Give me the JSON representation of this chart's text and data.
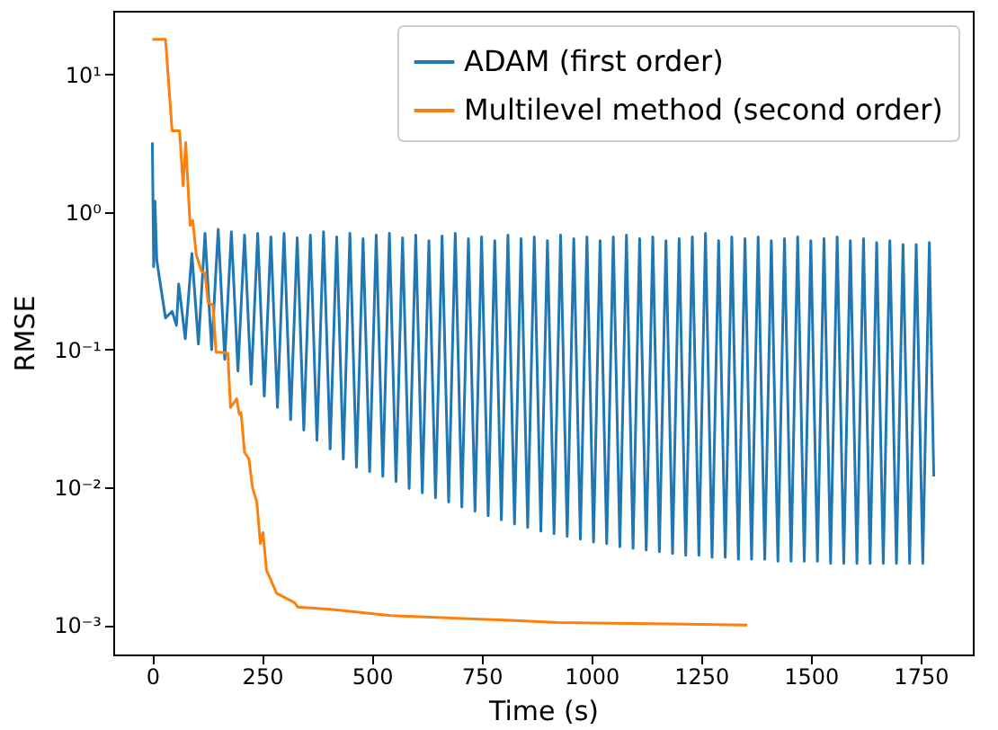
{
  "chart_data": {
    "type": "line",
    "xlabel": "Time (s)",
    "ylabel": "RMSE",
    "log": "y",
    "legend": "top right",
    "xlim": [
      -89,
      1869
    ],
    "xticks": [
      0,
      250,
      500,
      750,
      1000,
      1250,
      1500,
      1750
    ],
    "ylim": [
      0.00061,
      29
    ],
    "yticks": [
      {
        "value": 0.001,
        "label": "10⁻³"
      },
      {
        "value": 0.01,
        "label": "10⁻²"
      },
      {
        "value": 0.1,
        "label": "10⁻¹"
      },
      {
        "value": 1,
        "label": "10⁰"
      },
      {
        "value": 10,
        "label": "10¹"
      }
    ],
    "series": [
      {
        "name": "ADAM (first order)",
        "color": "#1f77b4",
        "x": [
          0,
          3,
          6,
          10,
          15,
          30,
          45,
          55,
          60,
          75,
          90,
          105,
          120,
          135,
          150,
          165,
          180,
          195,
          210,
          225,
          240,
          255,
          270,
          285,
          300,
          315,
          330,
          345,
          360,
          375,
          390,
          405,
          420,
          435,
          450,
          465,
          480,
          495,
          510,
          525,
          540,
          555,
          570,
          585,
          600,
          615,
          630,
          645,
          660,
          675,
          690,
          705,
          720,
          735,
          750,
          765,
          780,
          795,
          810,
          825,
          840,
          855,
          870,
          885,
          900,
          915,
          930,
          945,
          960,
          975,
          990,
          1005,
          1020,
          1035,
          1050,
          1065,
          1080,
          1095,
          1110,
          1125,
          1140,
          1155,
          1170,
          1185,
          1200,
          1215,
          1230,
          1245,
          1260,
          1275,
          1290,
          1305,
          1320,
          1335,
          1350,
          1365,
          1380,
          1395,
          1410,
          1425,
          1440,
          1455,
          1470,
          1485,
          1500,
          1515,
          1530,
          1545,
          1560,
          1575,
          1590,
          1605,
          1620,
          1635,
          1650,
          1665,
          1680,
          1695,
          1710,
          1725,
          1740,
          1755,
          1770,
          1780
        ],
        "values": [
          3.2,
          0.4,
          1.2,
          0.45,
          0.35,
          0.17,
          0.19,
          0.15,
          0.3,
          0.12,
          0.5,
          0.11,
          0.7,
          0.1,
          0.75,
          0.085,
          0.72,
          0.07,
          0.68,
          0.056,
          0.7,
          0.046,
          0.66,
          0.038,
          0.7,
          0.031,
          0.65,
          0.026,
          0.68,
          0.022,
          0.72,
          0.019,
          0.66,
          0.016,
          0.7,
          0.014,
          0.64,
          0.013,
          0.68,
          0.012,
          0.7,
          0.011,
          0.65,
          0.0098,
          0.68,
          0.0091,
          0.62,
          0.0084,
          0.67,
          0.0078,
          0.7,
          0.0072,
          0.64,
          0.0067,
          0.66,
          0.0062,
          0.62,
          0.0058,
          0.68,
          0.0054,
          0.64,
          0.0051,
          0.66,
          0.0048,
          0.62,
          0.0046,
          0.68,
          0.0044,
          0.64,
          0.0042,
          0.66,
          0.004,
          0.62,
          0.0039,
          0.66,
          0.0037,
          0.68,
          0.0036,
          0.64,
          0.0035,
          0.66,
          0.0034,
          0.62,
          0.0033,
          0.64,
          0.0032,
          0.66,
          0.0032,
          0.7,
          0.0031,
          0.62,
          0.0031,
          0.66,
          0.003,
          0.64,
          0.003,
          0.66,
          0.003,
          0.62,
          0.0029,
          0.64,
          0.0029,
          0.66,
          0.0029,
          0.62,
          0.0029,
          0.64,
          0.0028,
          0.66,
          0.0028,
          0.62,
          0.0028,
          0.64,
          0.0028,
          0.6,
          0.0028,
          0.62,
          0.0028,
          0.58,
          0.0028,
          0.58,
          0.0028,
          0.6,
          0.012
        ]
      },
      {
        "name": "Multilevel method (second order)",
        "color": "#ff7f0e",
        "x": [
          0,
          30,
          45,
          62,
          70,
          76,
          86,
          92,
          100,
          112,
          120,
          127,
          138,
          145,
          155,
          172,
          178,
          192,
          198,
          202,
          210,
          220,
          228,
          238,
          246,
          252,
          260,
          283,
          324,
          331,
          406,
          543,
          816,
          925,
          1355
        ],
        "values": [
          18,
          18,
          3.9,
          3.9,
          1.55,
          3.2,
          0.8,
          0.87,
          0.49,
          0.37,
          0.36,
          0.22,
          0.21,
          0.096,
          0.096,
          0.094,
          0.038,
          0.044,
          0.034,
          0.035,
          0.018,
          0.016,
          0.01,
          0.0078,
          0.0039,
          0.0047,
          0.0025,
          0.0017,
          0.00145,
          0.00135,
          0.0013,
          0.00117,
          0.00108,
          0.00104,
          0.001
        ]
      }
    ]
  }
}
